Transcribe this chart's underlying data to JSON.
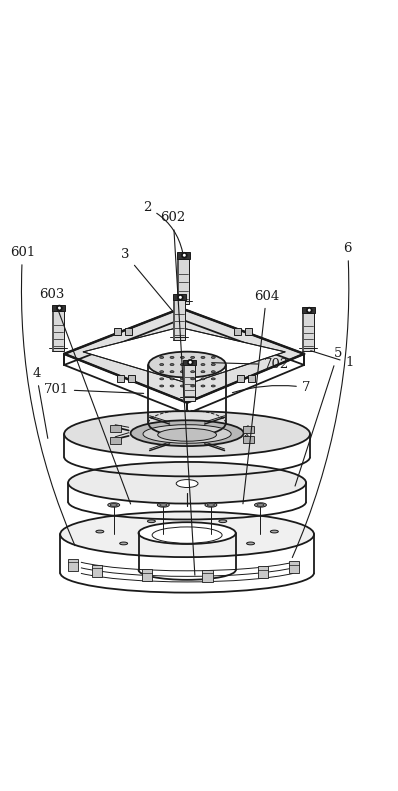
{
  "background_color": "#ffffff",
  "line_color": "#1a1a1a",
  "figsize": [
    3.98,
    7.91
  ],
  "dpi": 100,
  "lw_main": 1.3,
  "lw_thin": 0.7,
  "lw_thick": 1.8
}
